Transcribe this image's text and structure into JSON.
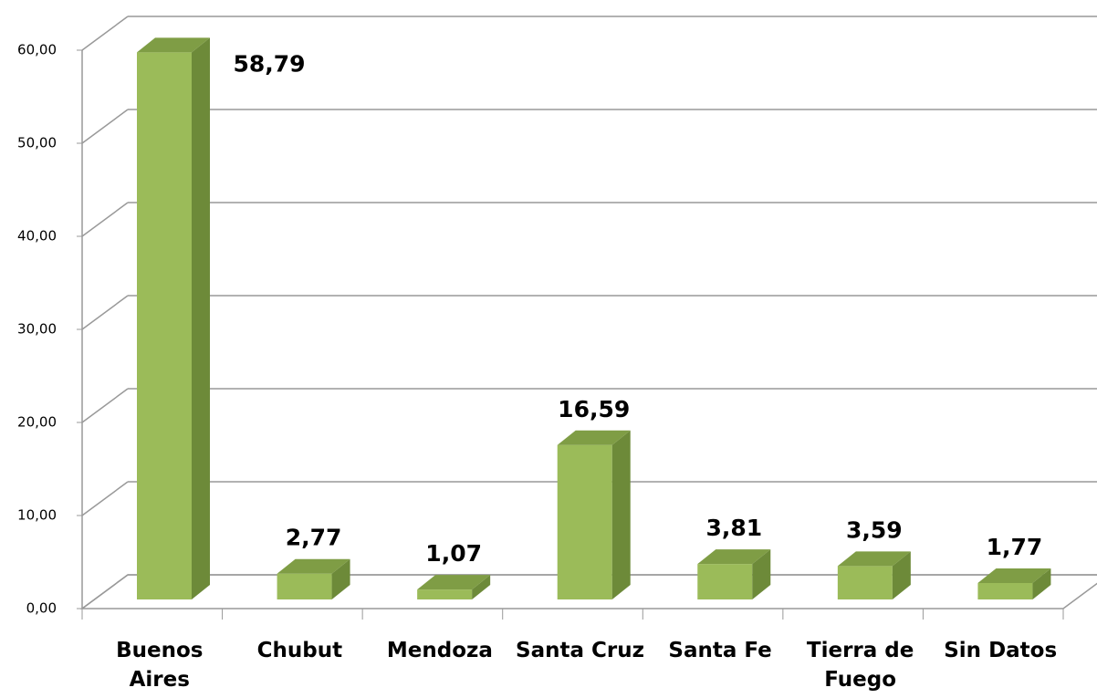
{
  "chart_data": {
    "type": "bar3d",
    "categories": [
      "Buenos Aires",
      "Chubut",
      "Mendoza",
      "Santa Cruz",
      "Santa Fe",
      "Tierra de Fuego",
      "Sin Datos"
    ],
    "values": [
      58.79,
      2.77,
      1.07,
      16.59,
      3.81,
      3.59,
      1.77
    ],
    "value_labels": [
      "58,79",
      "2,77",
      "1,07",
      "16,59",
      "3,81",
      "3,59",
      "1,77"
    ],
    "color": "#9bbb59",
    "ylim": [
      0,
      60
    ],
    "yticks": [
      {
        "value": 0,
        "label": "0,00"
      },
      {
        "value": 10,
        "label": "10,00"
      },
      {
        "value": 20,
        "label": "20,00"
      },
      {
        "value": 30,
        "label": "30,00"
      },
      {
        "value": 40,
        "label": "40,00"
      },
      {
        "value": 50,
        "label": "50,00"
      },
      {
        "value": 60,
        "label": "60,00"
      }
    ],
    "grid": true
  }
}
